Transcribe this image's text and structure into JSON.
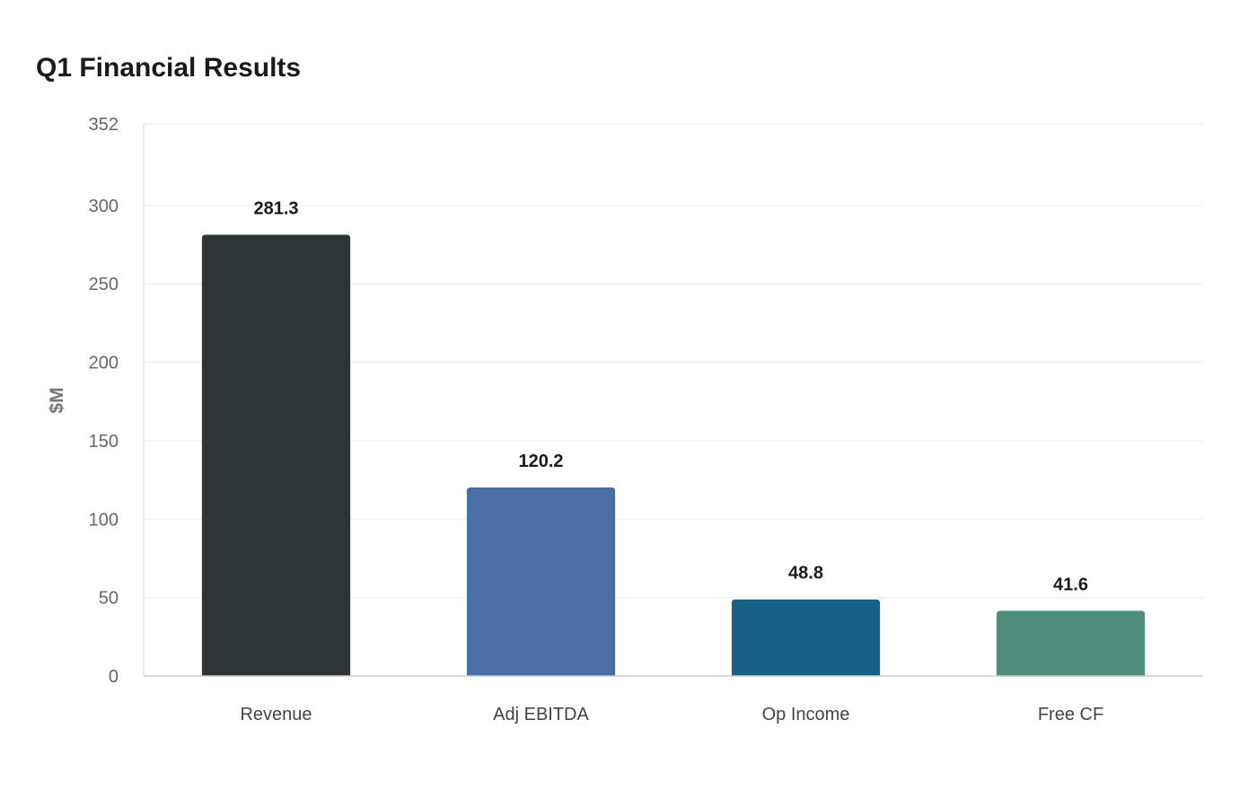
{
  "chart_data": {
    "type": "bar",
    "title": "Q1 Financial Results",
    "xlabel": "",
    "ylabel": "$M",
    "categories": [
      "Revenue",
      "Adj EBITDA",
      "Op Income",
      "Free CF"
    ],
    "values": [
      281.3,
      120.2,
      48.8,
      41.6
    ],
    "value_labels": [
      "281.3",
      "120.2",
      "48.8",
      "41.6"
    ],
    "colors": [
      "#2e3538",
      "#4a6fa5",
      "#176087",
      "#4e8d7c"
    ],
    "ylim": [
      0,
      352
    ],
    "yticks": [
      0,
      50,
      100,
      150,
      200,
      250,
      300,
      352
    ],
    "grid": true,
    "legend": "none"
  }
}
